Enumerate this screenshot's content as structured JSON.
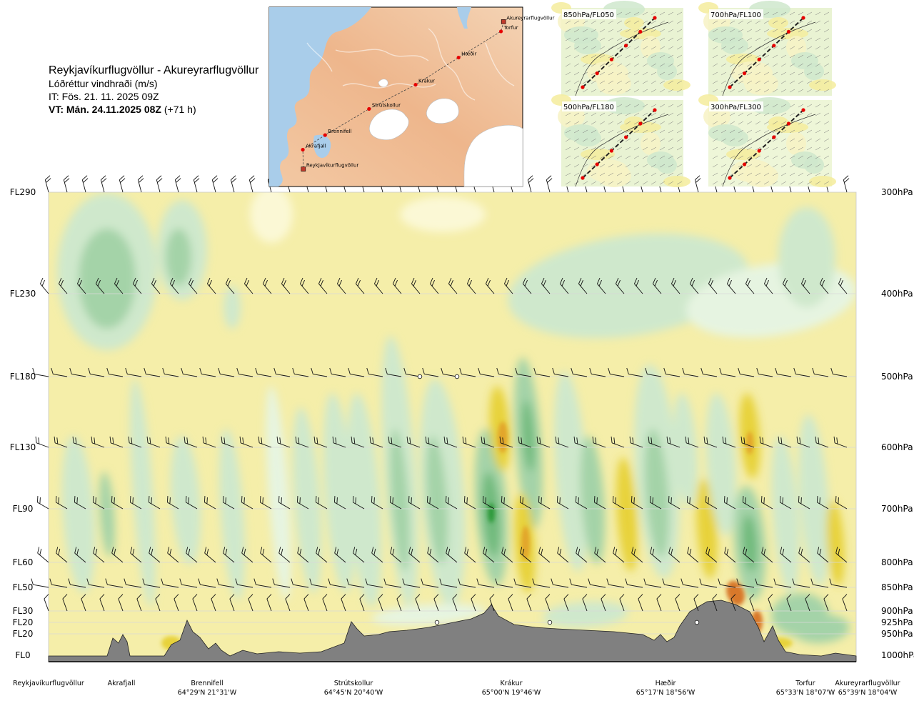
{
  "header": {
    "route": "Reykjavíkurflugvöllur - Akureyrarflugvöllur",
    "variable": "Lóðréttur vindhraði (m/s)",
    "issue_time": "IT: Fös. 21. 11. 2025 09Z",
    "valid_time": "VT: Mán. 24.11.2025 08Z",
    "lead": "(+71 h)"
  },
  "map": {
    "points": [
      {
        "name": "Akureyrarflugvöllur",
        "lon": -18.07,
        "lat": 65.65
      },
      {
        "name": "Torfur",
        "lon": -18.12,
        "lat": 65.55
      },
      {
        "name": "Hæðir",
        "lon": -18.94,
        "lat": 65.28
      },
      {
        "name": "Krákur",
        "lon": -19.77,
        "lat": 65.0
      },
      {
        "name": "Strútskollur",
        "lon": -20.67,
        "lat": 64.75
      },
      {
        "name": "Brennifell",
        "lon": -21.52,
        "lat": 64.48
      },
      {
        "name": "Akrafjall",
        "lon": -21.95,
        "lat": 64.33
      },
      {
        "name": "Reykjavíkurflugvöllur",
        "lon": -21.94,
        "lat": 64.13
      }
    ]
  },
  "insets": [
    {
      "label": "850hPa/FL050"
    },
    {
      "label": "700hPa/FL100"
    },
    {
      "label": "500hPa/FL180"
    },
    {
      "label": "300hPa/FL300"
    }
  ],
  "chart_data": {
    "type": "heatmap",
    "title": "Reykjavíkurflugvöllur - Akureyrarflugvöllur",
    "levels": [
      {
        "fl": "FL290",
        "hpa": "300hPa"
      },
      {
        "fl": "FL230",
        "hpa": "400hPa"
      },
      {
        "fl": "FL180",
        "hpa": "500hPa"
      },
      {
        "fl": "FL130",
        "hpa": "600hPa"
      },
      {
        "fl": "FL90",
        "hpa": "700hPa"
      },
      {
        "fl": "FL60",
        "hpa": "800hPa"
      },
      {
        "fl": "FL50",
        "hpa": "850hPa"
      },
      {
        "fl": "FL30",
        "hpa": "900hPa"
      },
      {
        "fl": "FL20",
        "hpa": "925hPa"
      },
      {
        "fl": "FL20",
        "hpa": "950hPa"
      },
      {
        "fl": "FL0",
        "hpa": "1000hPa"
      }
    ],
    "locations": [
      {
        "name": "Reykjavíkurflugvöllur",
        "coord": ""
      },
      {
        "name": "Akrafjall",
        "coord": ""
      },
      {
        "name": "Brennifell",
        "coord": "64°29'N 21°31'W"
      },
      {
        "name": "Strútskollur",
        "coord": "64°45'N 20°40'W"
      },
      {
        "name": "Krákur",
        "coord": "65°00'N 19°46'W"
      },
      {
        "name": "Hæðir",
        "coord": "65°17'N 18°56'W"
      },
      {
        "name": "Torfur",
        "coord": "65°33'N 18°07'W"
      },
      {
        "name": "Akureyrarflugvöllur",
        "coord": "65°39'N 18°04'W"
      }
    ],
    "colors": {
      "sink_strong": "#2e9a3a",
      "sink_mid": "#6fba7b",
      "sink_weak": "#a4d3a8",
      "sink_faint": "#cfe8cc",
      "neutral": "#e6f4e1",
      "rise_faint": "#fbf8d5",
      "rise_weak": "#f5eea9",
      "rise_mid": "#e7d23a",
      "rise_strong": "#e2a52b",
      "rise_max": "#d8782a",
      "terrain": "#808080"
    }
  }
}
